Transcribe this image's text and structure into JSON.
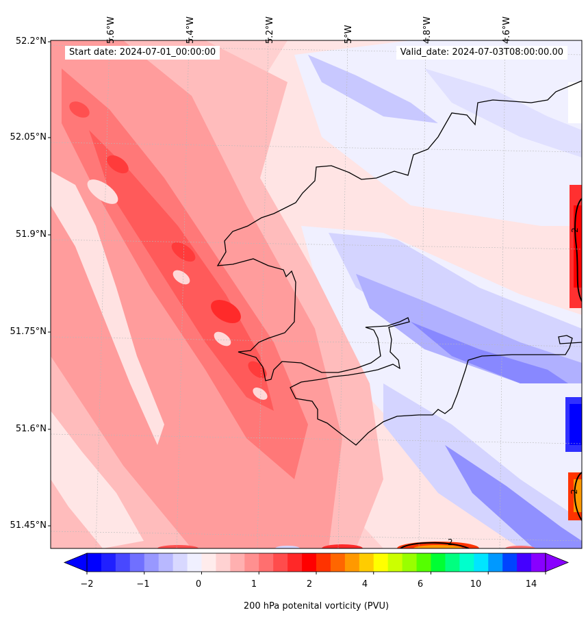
{
  "map": {
    "start_date": "Start date: 2024-07-01_00:00:00",
    "valid_date": "Valid_date: 2024-07-03T08:00:00.00",
    "lon_labels": [
      "5.6°W",
      "5.4°W",
      "5.2°W",
      "5°W",
      "4.8°W",
      "4.6°W"
    ],
    "lat_labels": [
      "52.2°N",
      "52.05°N",
      "51.9°N",
      "51.75°N",
      "51.6°N",
      "51.45°N"
    ],
    "contour_label": "2",
    "field": "200 hPa potential vorticity",
    "coastline_color": "#000000"
  },
  "colorbar": {
    "title": "200 hPa potenital vorticity (PVU)",
    "tick_labels": [
      "−2",
      "−1",
      "0",
      "1",
      "2",
      "4",
      "6",
      "10",
      "14"
    ],
    "colors": [
      "#0000ff",
      "#2020ff",
      "#4848ff",
      "#7070ff",
      "#9898ff",
      "#b8b8ff",
      "#d8d8ff",
      "#f0f0ff",
      "#ffecec",
      "#ffd2d2",
      "#ffb0b0",
      "#ff9090",
      "#ff6f6f",
      "#ff4c4c",
      "#ff2828",
      "#ff0000",
      "#ff3300",
      "#ff6600",
      "#ff9900",
      "#ffcc00",
      "#ffff00",
      "#ccff00",
      "#99ff00",
      "#55ff00",
      "#00ff33",
      "#00ff80",
      "#00ffcc",
      "#00e5ff",
      "#0099ff",
      "#0044ff",
      "#4400ff",
      "#8800ff"
    ]
  }
}
